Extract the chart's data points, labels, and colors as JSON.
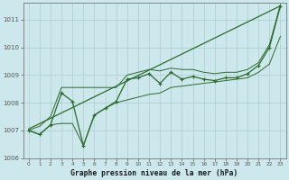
{
  "xlabel": "Graphe pression niveau de la mer (hPa)",
  "bg_color": "#cce8ec",
  "grid_color": "#aacccc",
  "line_color": "#2d6a2d",
  "ylim": [
    1006.0,
    1011.6
  ],
  "xlim": [
    -0.5,
    23.5
  ],
  "yticks": [
    1006,
    1007,
    1008,
    1009,
    1010,
    1011
  ],
  "xticks": [
    0,
    1,
    2,
    3,
    4,
    5,
    6,
    7,
    8,
    9,
    10,
    11,
    12,
    13,
    14,
    15,
    16,
    17,
    18,
    19,
    20,
    21,
    22,
    23
  ],
  "main_line": [
    1007.0,
    1006.85,
    1007.2,
    1008.35,
    1008.05,
    1006.45,
    1007.55,
    1007.8,
    1008.05,
    1008.85,
    1008.9,
    1009.05,
    1008.7,
    1009.1,
    1008.85,
    1008.95,
    1008.85,
    1008.8,
    1008.9,
    1008.9,
    1009.05,
    1009.35,
    1010.0,
    1011.5
  ],
  "upper_env": [
    1007.0,
    1007.15,
    1007.5,
    1008.55,
    1008.55,
    1008.55,
    1008.55,
    1008.55,
    1008.55,
    1009.0,
    1009.1,
    1009.2,
    1009.15,
    1009.25,
    1009.2,
    1009.2,
    1009.1,
    1009.05,
    1009.1,
    1009.1,
    1009.2,
    1009.45,
    1010.1,
    1011.55
  ],
  "lower_env": [
    1007.0,
    1006.85,
    1007.2,
    1007.25,
    1007.25,
    1006.45,
    1007.55,
    1007.8,
    1008.0,
    1008.1,
    1008.2,
    1008.3,
    1008.35,
    1008.55,
    1008.6,
    1008.65,
    1008.7,
    1008.75,
    1008.8,
    1008.85,
    1008.9,
    1009.1,
    1009.4,
    1010.4
  ],
  "trend_x": [
    0,
    23
  ],
  "trend_y": [
    1007.05,
    1011.5
  ]
}
